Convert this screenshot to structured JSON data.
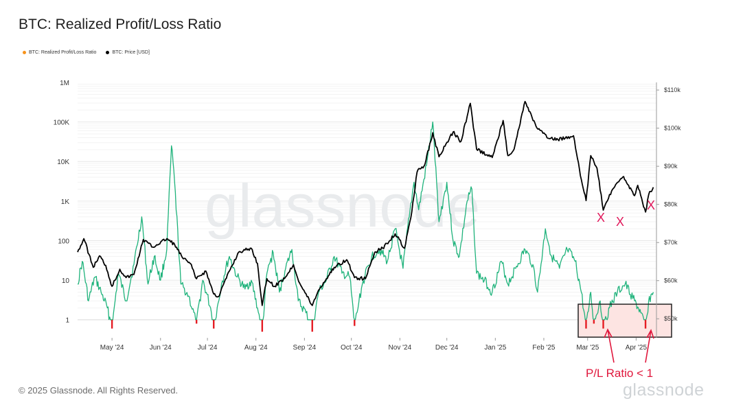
{
  "title": "BTC: Realized Profit/Loss Ratio",
  "legend": [
    {
      "label": "BTC: Realized Profit/Loss Ratio",
      "color": "#f7931a"
    },
    {
      "label": "BTC: Price [USD]",
      "color": "#000000"
    }
  ],
  "watermark": "glassnode",
  "copyright": "© 2025 Glassnode. All Rights Reserved.",
  "brand": "glassnode",
  "annotation": {
    "label": "P/L Ratio < 1",
    "markers": [
      "X",
      "X",
      "X"
    ]
  },
  "colors": {
    "ratio_above": "#1db27a",
    "ratio_below": "#e51c23",
    "price": "#000000",
    "highlight_box": "#fde4e2",
    "annotation": "#e0173c"
  },
  "chart_data": {
    "type": "line",
    "x_ticks": [
      "May '24",
      "Jun '24",
      "Jul '24",
      "Aug '24",
      "Sep '24",
      "Oct '24",
      "Nov '24",
      "Dec '24",
      "Jan '25",
      "Feb '25",
      "Mar '25",
      "Apr '25"
    ],
    "y_left": {
      "scale": "log",
      "ticks": [
        "1",
        "10",
        "100",
        "1K",
        "10K",
        "100K",
        "1M"
      ],
      "range": [
        0.35,
        1000000
      ]
    },
    "y_right": {
      "scale": "linear",
      "ticks": [
        "$50k",
        "$60k",
        "$70k",
        "$80k",
        "$90k",
        "$100k",
        "$110k"
      ],
      "range": [
        45000,
        112000
      ]
    },
    "series": [
      {
        "name": "BTC: Price [USD]",
        "axis": "right",
        "points": [
          [
            "2024-04-09",
            67500
          ],
          [
            "2024-04-13",
            71000
          ],
          [
            "2024-04-19",
            63500
          ],
          [
            "2024-04-23",
            66500
          ],
          [
            "2024-04-27",
            64000
          ],
          [
            "2024-05-01",
            58500
          ],
          [
            "2024-05-06",
            63000
          ],
          [
            "2024-05-10",
            60800
          ],
          [
            "2024-05-15",
            61600
          ],
          [
            "2024-05-21",
            70800
          ],
          [
            "2024-05-27",
            68800
          ],
          [
            "2024-06-05",
            71000
          ],
          [
            "2024-06-10",
            69500
          ],
          [
            "2024-06-15",
            66000
          ],
          [
            "2024-06-20",
            64500
          ],
          [
            "2024-06-24",
            60500
          ],
          [
            "2024-06-30",
            62500
          ],
          [
            "2024-07-05",
            56500
          ],
          [
            "2024-07-08",
            55800
          ],
          [
            "2024-07-15",
            62500
          ],
          [
            "2024-07-21",
            67500
          ],
          [
            "2024-07-29",
            68500
          ],
          [
            "2024-08-02",
            64500
          ],
          [
            "2024-08-05",
            53500
          ],
          [
            "2024-08-08",
            60500
          ],
          [
            "2024-08-13",
            58500
          ],
          [
            "2024-08-20",
            61000
          ],
          [
            "2024-08-25",
            64200
          ],
          [
            "2024-08-29",
            59300
          ],
          [
            "2024-09-06",
            53500
          ],
          [
            "2024-09-10",
            57500
          ],
          [
            "2024-09-15",
            60500
          ],
          [
            "2024-09-20",
            63500
          ],
          [
            "2024-09-28",
            65500
          ],
          [
            "2024-10-03",
            60800
          ],
          [
            "2024-10-10",
            60500
          ],
          [
            "2024-10-16",
            67500
          ],
          [
            "2024-10-21",
            68500
          ],
          [
            "2024-10-29",
            72300
          ],
          [
            "2024-11-04",
            68500
          ],
          [
            "2024-11-08",
            76500
          ],
          [
            "2024-11-12",
            88500
          ],
          [
            "2024-11-17",
            90500
          ],
          [
            "2024-11-22",
            98800
          ],
          [
            "2024-11-26",
            92500
          ],
          [
            "2024-12-05",
            99000
          ],
          [
            "2024-12-10",
            96500
          ],
          [
            "2024-12-16",
            106500
          ],
          [
            "2024-12-20",
            94500
          ],
          [
            "2024-12-30",
            92300
          ],
          [
            "2025-01-06",
            102000
          ],
          [
            "2025-01-09",
            92800
          ],
          [
            "2025-01-13",
            94500
          ],
          [
            "2025-01-20",
            107000
          ],
          [
            "2025-01-27",
            100500
          ],
          [
            "2025-02-03",
            97500
          ],
          [
            "2025-02-10",
            97000
          ],
          [
            "2025-02-20",
            98000
          ],
          [
            "2025-02-25",
            86500
          ],
          [
            "2025-02-28",
            81000
          ],
          [
            "2025-03-03",
            92800
          ],
          [
            "2025-03-07",
            89500
          ],
          [
            "2025-03-11",
            78500
          ],
          [
            "2025-03-17",
            84000
          ],
          [
            "2025-03-24",
            87300
          ],
          [
            "2025-03-31",
            82300
          ],
          [
            "2025-04-02",
            85000
          ],
          [
            "2025-04-07",
            78000
          ],
          [
            "2025-04-09",
            82500
          ],
          [
            "2025-04-12",
            84500
          ]
        ]
      },
      {
        "name": "BTC: Realized Profit/Loss Ratio",
        "axis": "left",
        "points": [
          [
            "2024-04-09",
            8
          ],
          [
            "2024-04-12",
            30
          ],
          [
            "2024-04-16",
            3
          ],
          [
            "2024-04-20",
            12
          ],
          [
            "2024-04-24",
            5
          ],
          [
            "2024-04-28",
            2
          ],
          [
            "2024-05-01",
            0.6
          ],
          [
            "2024-05-05",
            15
          ],
          [
            "2024-05-10",
            3
          ],
          [
            "2024-05-15",
            25
          ],
          [
            "2024-05-20",
            400
          ],
          [
            "2024-05-24",
            8
          ],
          [
            "2024-05-28",
            40
          ],
          [
            "2024-06-01",
            10
          ],
          [
            "2024-06-05",
            60
          ],
          [
            "2024-06-08",
            25000
          ],
          [
            "2024-06-10",
            3000
          ],
          [
            "2024-06-14",
            8
          ],
          [
            "2024-06-19",
            4
          ],
          [
            "2024-06-24",
            0.8
          ],
          [
            "2024-06-28",
            10
          ],
          [
            "2024-07-03",
            2
          ],
          [
            "2024-07-05",
            0.6
          ],
          [
            "2024-07-10",
            8
          ],
          [
            "2024-07-15",
            40
          ],
          [
            "2024-07-20",
            12
          ],
          [
            "2024-07-25",
            6
          ],
          [
            "2024-07-29",
            10
          ],
          [
            "2024-08-02",
            2
          ],
          [
            "2024-08-05",
            0.5
          ],
          [
            "2024-08-08",
            15
          ],
          [
            "2024-08-12",
            50
          ],
          [
            "2024-08-16",
            5
          ],
          [
            "2024-08-20",
            20
          ],
          [
            "2024-08-24",
            60
          ],
          [
            "2024-08-28",
            3
          ],
          [
            "2024-09-02",
            1.5
          ],
          [
            "2024-09-06",
            0.5
          ],
          [
            "2024-09-10",
            5
          ],
          [
            "2024-09-15",
            10
          ],
          [
            "2024-09-20",
            40
          ],
          [
            "2024-09-25",
            15
          ],
          [
            "2024-09-30",
            12
          ],
          [
            "2024-10-03",
            0.7
          ],
          [
            "2024-10-08",
            8
          ],
          [
            "2024-10-14",
            40
          ],
          [
            "2024-10-19",
            60
          ],
          [
            "2024-10-24",
            30
          ],
          [
            "2024-10-29",
            200
          ],
          [
            "2024-11-03",
            20
          ],
          [
            "2024-11-07",
            400
          ],
          [
            "2024-11-10",
            3000
          ],
          [
            "2024-11-13",
            600
          ],
          [
            "2024-11-18",
            8000
          ],
          [
            "2024-11-22",
            100000
          ],
          [
            "2024-11-26",
            300
          ],
          [
            "2024-12-01",
            3000
          ],
          [
            "2024-12-05",
            100
          ],
          [
            "2024-12-09",
            40
          ],
          [
            "2024-12-14",
            1000
          ],
          [
            "2024-12-17",
            2000
          ],
          [
            "2024-12-20",
            15
          ],
          [
            "2024-12-25",
            10
          ],
          [
            "2024-12-30",
            5
          ],
          [
            "2025-01-05",
            30
          ],
          [
            "2025-01-09",
            8
          ],
          [
            "2025-01-14",
            20
          ],
          [
            "2025-01-20",
            60
          ],
          [
            "2025-01-25",
            25
          ],
          [
            "2025-01-28",
            5
          ],
          [
            "2025-02-02",
            200
          ],
          [
            "2025-02-06",
            40
          ],
          [
            "2025-02-11",
            20
          ],
          [
            "2025-02-16",
            60
          ],
          [
            "2025-02-21",
            30
          ],
          [
            "2025-02-25",
            5
          ],
          [
            "2025-02-28",
            0.6
          ],
          [
            "2025-03-03",
            5
          ],
          [
            "2025-03-05",
            0.8
          ],
          [
            "2025-03-09",
            3
          ],
          [
            "2025-03-11",
            0.6
          ],
          [
            "2025-03-15",
            2
          ],
          [
            "2025-03-20",
            5
          ],
          [
            "2025-03-25",
            8
          ],
          [
            "2025-03-31",
            3
          ],
          [
            "2025-04-04",
            1.5
          ],
          [
            "2025-04-07",
            0.6
          ],
          [
            "2025-04-09",
            3
          ],
          [
            "2025-04-12",
            5
          ]
        ]
      }
    ]
  }
}
